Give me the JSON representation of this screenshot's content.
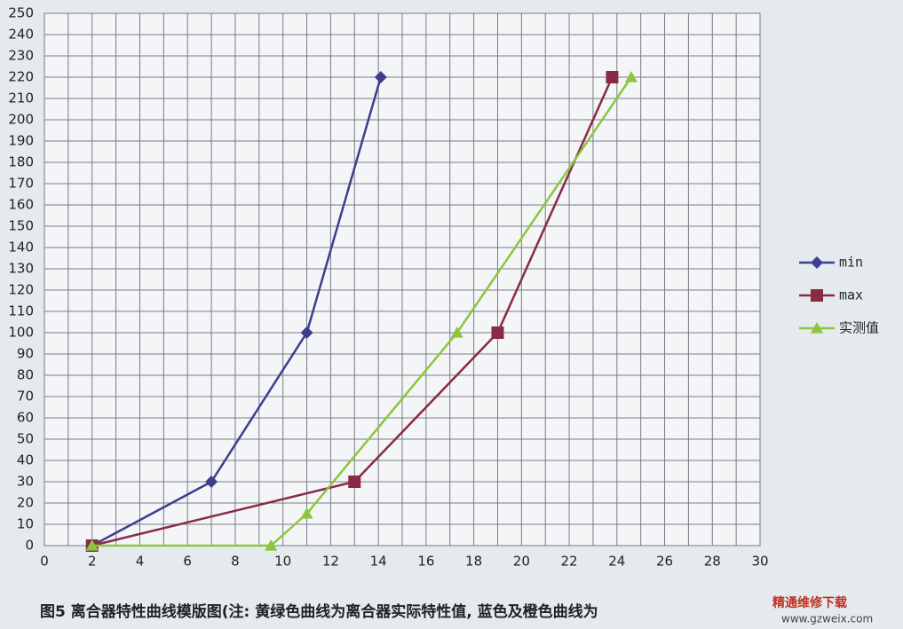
{
  "chart_data": {
    "type": "line",
    "caption": "图5 离合器特性曲线模版图(注: 黄绿色曲线为离合器实际特性值, 蓝色及橙色曲线为",
    "watermark": "精通维修下载",
    "watermark_url": "www.gzweix.com",
    "xlim": [
      0,
      30
    ],
    "xticks": [
      0,
      2,
      4,
      6,
      8,
      10,
      12,
      14,
      16,
      18,
      20,
      22,
      24,
      26,
      28,
      30
    ],
    "ylim": [
      0,
      250
    ],
    "yticks": [
      0,
      10,
      20,
      30,
      40,
      50,
      60,
      70,
      80,
      90,
      100,
      110,
      120,
      130,
      140,
      150,
      160,
      170,
      180,
      190,
      200,
      210,
      220,
      230,
      240,
      250
    ],
    "grid": true,
    "legend": "right",
    "series": [
      {
        "name": "min",
        "color": "#3d3f8e",
        "marker": "diamond",
        "x": [
          2,
          7,
          11,
          14.1
        ],
        "values": [
          0,
          30,
          100,
          220
        ]
      },
      {
        "name": "max",
        "color": "#8a2a45",
        "marker": "square",
        "x": [
          2,
          13,
          19,
          23.8
        ],
        "values": [
          0,
          30,
          100,
          220
        ]
      },
      {
        "name": "实测值",
        "color": "#8cc63f",
        "marker": "triangle",
        "x": [
          2,
          9.5,
          11,
          17.3,
          24.6
        ],
        "values": [
          0,
          0,
          15,
          100,
          220
        ]
      }
    ]
  }
}
